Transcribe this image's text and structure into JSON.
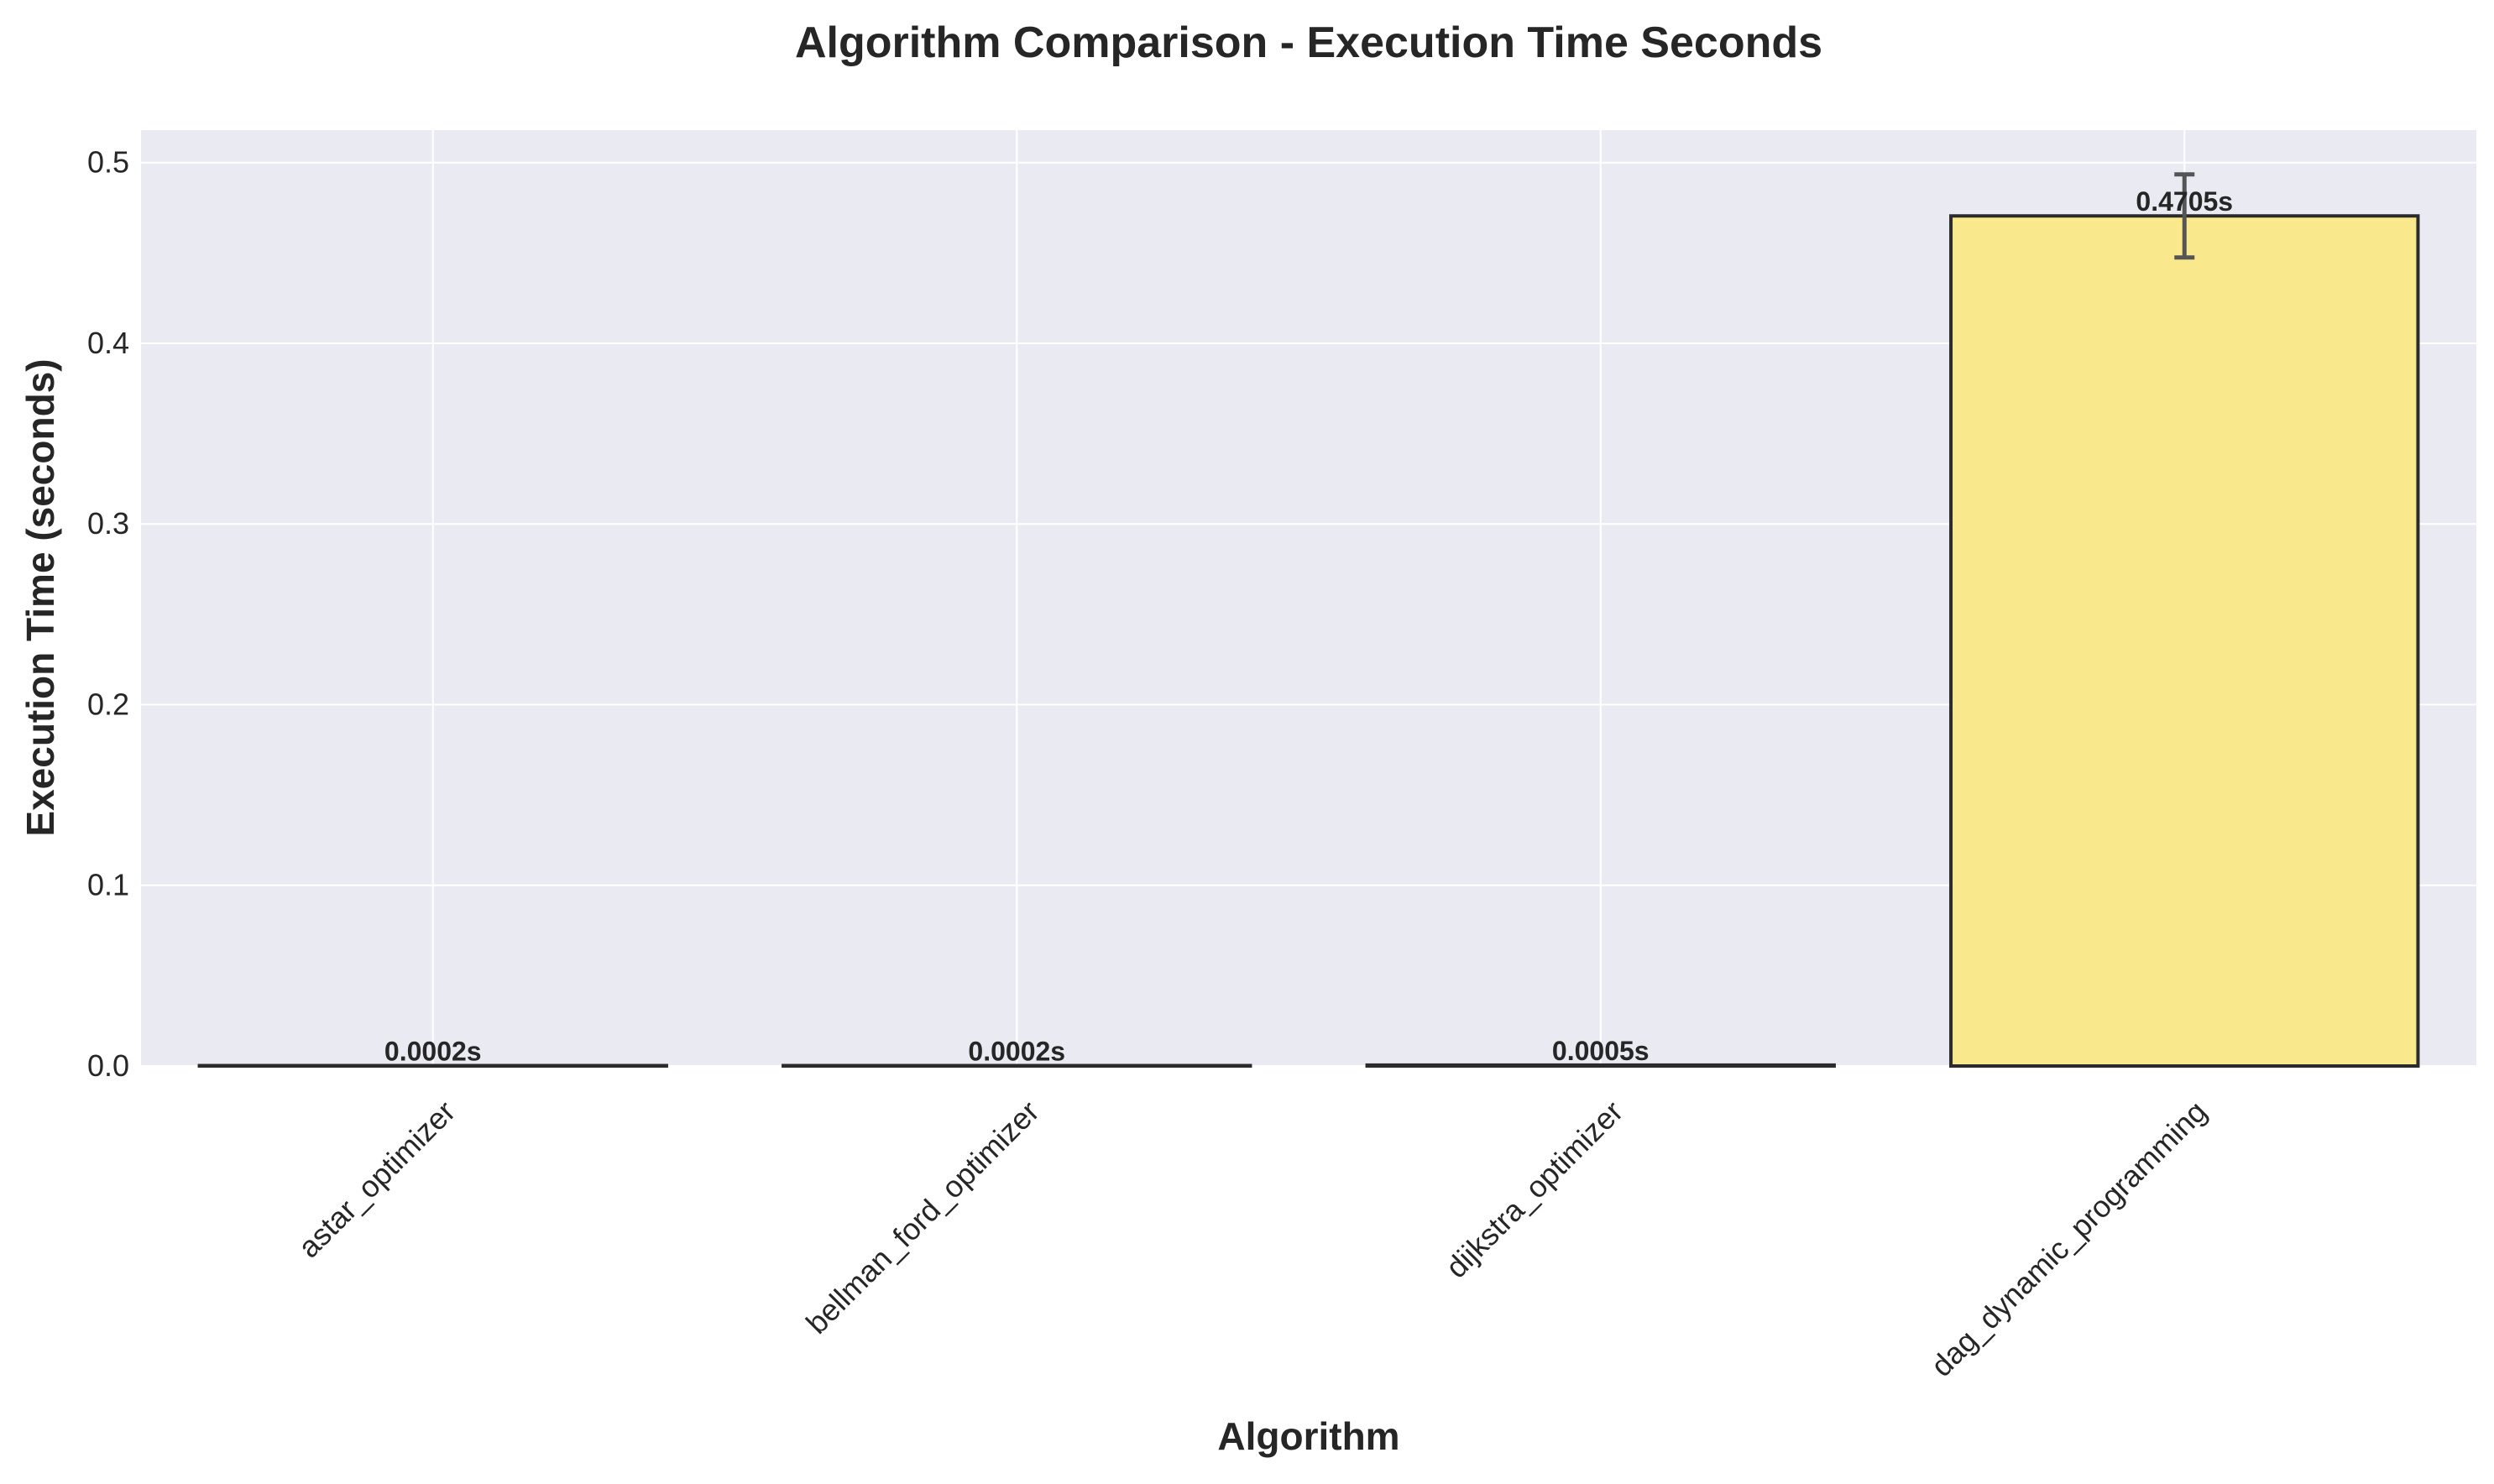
{
  "chart_data": {
    "type": "bar",
    "title": "Algorithm Comparison - Execution Time Seconds",
    "xlabel": "Algorithm",
    "ylabel": "Execution Time (seconds)",
    "categories": [
      "astar_optimizer",
      "bellman_ford_optimizer",
      "dijkstra_optimizer",
      "dag_dynamic_programming"
    ],
    "values": [
      0.0002,
      0.0002,
      0.0005,
      0.4705
    ],
    "error": [
      null,
      null,
      null,
      0.023
    ],
    "data_labels": [
      "0.0002s",
      "0.0002s",
      "0.0005s",
      "0.4705s"
    ],
    "ylim": [
      0,
      0.518
    ],
    "yticks": [
      0.0,
      0.1,
      0.2,
      0.3,
      0.4,
      0.5
    ],
    "ytick_labels": [
      "0.0",
      "0.1",
      "0.2",
      "0.3",
      "0.4",
      "0.5"
    ],
    "grid": true,
    "colors": {
      "plot_background": "#eaeaf2",
      "grid": "#ffffff",
      "bar_highlight": "#f9e98c",
      "bar_edge": "#2b2b2b",
      "error_bar": "#555555"
    }
  }
}
